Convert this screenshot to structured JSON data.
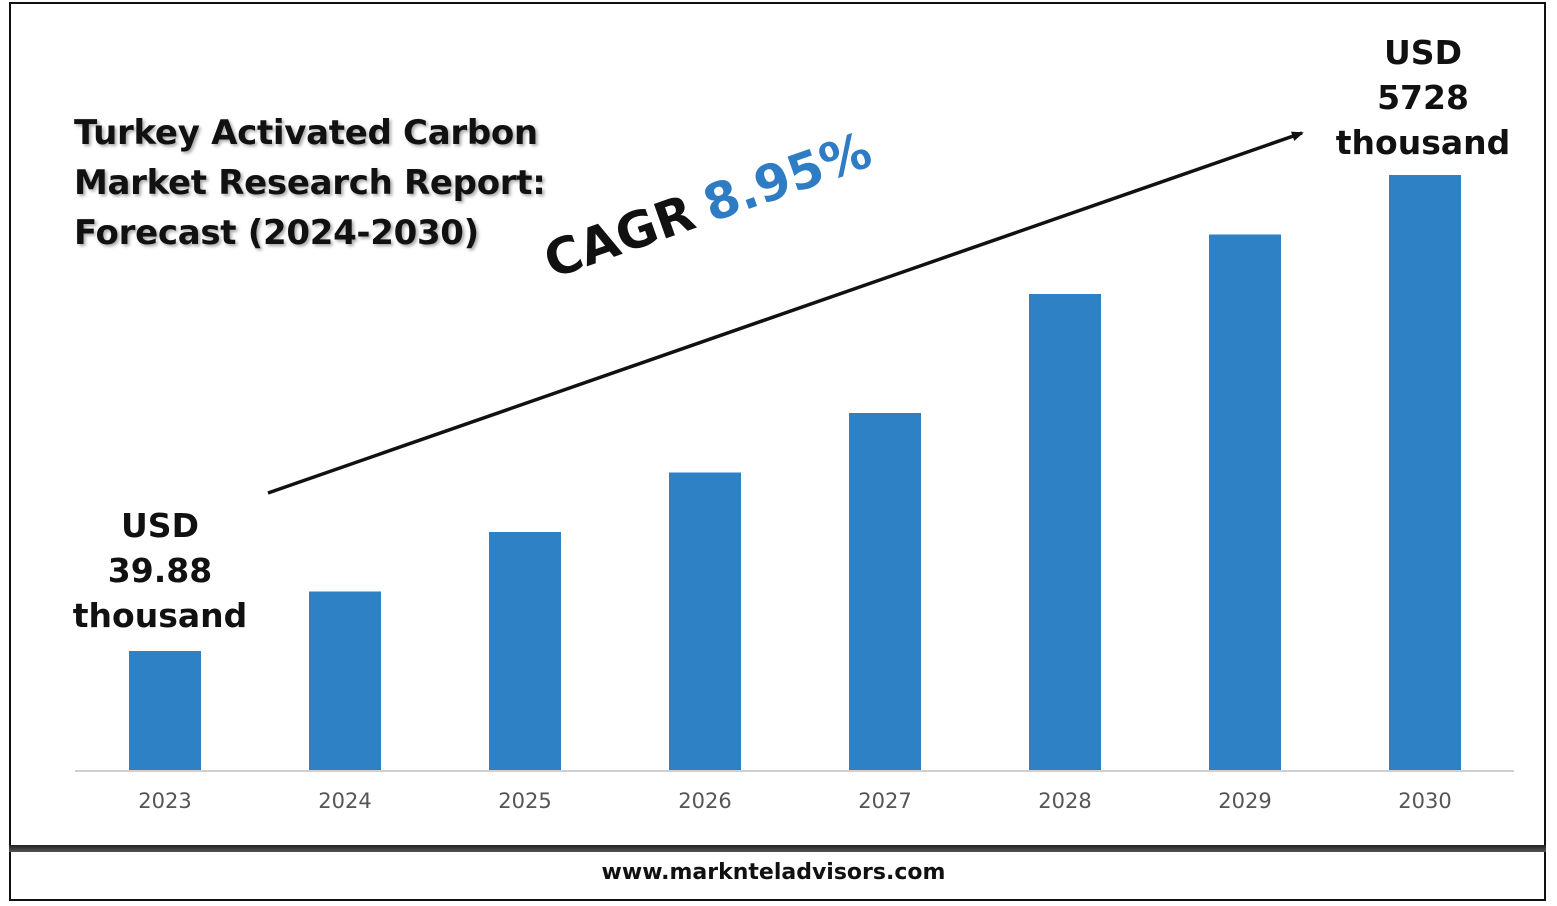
{
  "title_lines": [
    "Turkey Activated Carbon",
    "Market Research Report:",
    "Forecast (2024-2030)"
  ],
  "cagr": {
    "label": "CAGR",
    "value": "8.95%"
  },
  "start_callout": [
    "USD",
    "39.88",
    "thousand"
  ],
  "end_callout": [
    "USD",
    "5728",
    "thousand"
  ],
  "footer": {
    "url": "www.markntel​advisors.com"
  },
  "colors": {
    "bar": "#2e81c5",
    "cagr_value": "#2e7cc4",
    "axis": "#d0d0d0",
    "arrow": "#111111"
  },
  "chart_data": {
    "type": "bar",
    "title": "Turkey Activated Carbon Market Research Report: Forecast (2024-2030)",
    "categories": [
      "2023",
      "2024",
      "2025",
      "2026",
      "2027",
      "2028",
      "2029",
      "2030"
    ],
    "series": [
      {
        "values": [
          1.0,
          1.5,
          2.0,
          2.5,
          3.0,
          4.0,
          4.5,
          5.0
        ]
      }
    ],
    "xlabel": "",
    "ylabel": "",
    "ylim": [
      0,
      5.0
    ],
    "grid": false,
    "legend": "none"
  }
}
